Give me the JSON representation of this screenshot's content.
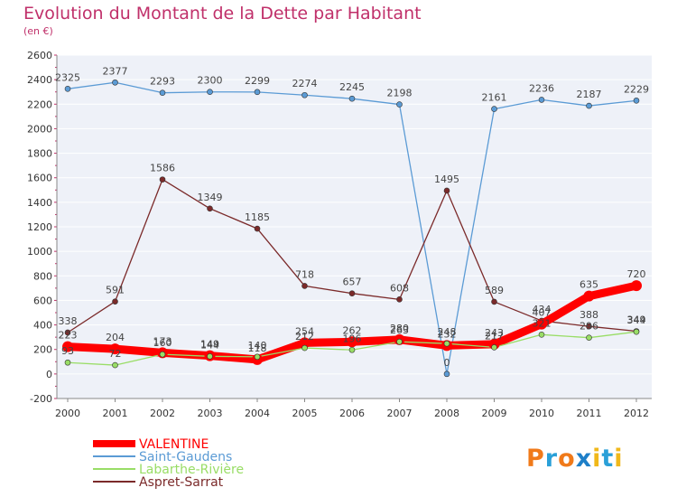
{
  "header": {
    "title": "Evolution du Montant de la Dette par Habitant",
    "subtitle": "(en €)"
  },
  "logo": {
    "text": "Proxiti",
    "colors": [
      "#f07a1a",
      "#2aa0d8",
      "#f07a1a",
      "#1e7fc8",
      "#f0b81a",
      "#2aa0d8",
      "#f0b81a"
    ]
  },
  "chart_data": {
    "type": "line",
    "x": [
      "2000",
      "2001",
      "2002",
      "2003",
      "2004",
      "2005",
      "2006",
      "2007",
      "2008",
      "2009",
      "2010",
      "2011",
      "2012"
    ],
    "ylim": [
      -200,
      2600
    ],
    "yticks": [
      "-200",
      "0",
      "200",
      "400",
      "600",
      "800",
      "1000",
      "1200",
      "1400",
      "1600",
      "1800",
      "2000",
      "2200",
      "2400",
      "2600"
    ],
    "grid": true,
    "legend_position": "bottom-left",
    "series": [
      {
        "name": "VALENTINE",
        "color": "#ff0000",
        "values": [
          223,
          204,
          173,
          149,
          118,
          254,
          262,
          280,
          232,
          243,
          407,
          635,
          720
        ],
        "labels": [
          "223",
          "204",
          "173",
          "149",
          "118",
          "254",
          "262",
          "280",
          "232",
          "243",
          "407",
          "635",
          "720"
        ]
      },
      {
        "name": "Saint-Gaudens",
        "color": "#5b9bd5",
        "values": [
          2325,
          2377,
          2293,
          2300,
          2299,
          2274,
          2245,
          2198,
          0,
          2161,
          2236,
          2187,
          2229
        ],
        "labels": [
          "2325",
          "2377",
          "2293",
          "2300",
          "2299",
          "2274",
          "2245",
          "2198",
          "0",
          "2161",
          "2236",
          "2187",
          "2229"
        ]
      },
      {
        "name": "Labarthe-Rivière",
        "color": "#99dd66",
        "values": [
          93,
          72,
          160,
          144,
          140,
          212,
          196,
          263,
          248,
          217,
          321,
          296,
          344
        ],
        "labels": [
          "93",
          "72",
          "160",
          "144",
          "140",
          "212",
          "196",
          "263",
          "248",
          "217",
          "321",
          "296",
          "344"
        ]
      },
      {
        "name": "Aspret-Sarrat",
        "color": "#7b2a2a",
        "values": [
          338,
          591,
          1586,
          1349,
          1185,
          718,
          657,
          608,
          1495,
          589,
          434,
          388,
          349
        ],
        "labels": [
          "338",
          "591",
          "1586",
          "1349",
          "1185",
          "718",
          "657",
          "608",
          "1495",
          "589",
          "434",
          "388",
          "349"
        ]
      }
    ]
  }
}
